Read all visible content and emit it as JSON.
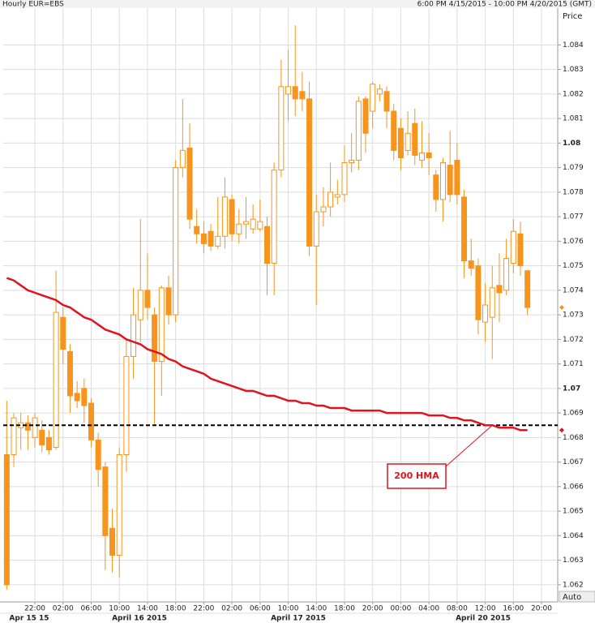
{
  "chart_data": {
    "type": "candlestick",
    "title": "Hourly EUR=EBS",
    "subtitle": "6:00 PM 4/15/2015 - 10:00 PM 4/20/2015 (GMT)",
    "y_axis_label": "Price",
    "axis_mode": "Auto",
    "categories": [
      null,
      null,
      null,
      null,
      "22:00",
      null,
      null,
      null,
      "02:00",
      null,
      null,
      null,
      "06:00",
      null,
      null,
      null,
      "10:00",
      null,
      null,
      null,
      "14:00",
      null,
      null,
      null,
      "18:00",
      null,
      null,
      null,
      "22:00",
      null,
      null,
      null,
      "02:00",
      null,
      null,
      null,
      "06:00",
      null,
      null,
      null,
      "10:00",
      null,
      null,
      null,
      "14:00",
      null,
      null,
      null,
      "18:00",
      null,
      null,
      null,
      "20:00",
      null,
      null,
      null,
      "00:00",
      null,
      null,
      null,
      "04:00",
      null,
      null,
      null,
      "08:00",
      null,
      null,
      null,
      "12:00",
      null,
      null,
      null,
      "16:00",
      null,
      null,
      null,
      "20:00"
    ],
    "date_labels": [
      "Apr 15 15",
      "April 16 2015",
      "April 17 2015",
      "April 20 2015"
    ],
    "open": [
      1.0673,
      1.0673,
      1.0684,
      1.0686,
      1.068,
      1.0683,
      1.068,
      1.0676,
      1.0729,
      1.0715,
      1.0698,
      1.07,
      1.0694,
      1.0679,
      1.0668,
      1.0643,
      1.0632,
      1.0673,
      1.0713,
      1.0728,
      1.074,
      1.073,
      1.0711,
      1.0741,
      1.073,
      1.079,
      1.0798,
      1.0766,
      1.0763,
      1.0764,
      1.0758,
      1.0762,
      1.0777,
      1.0763,
      1.0767,
      1.0765,
      1.0765,
      1.0766,
      1.0751,
      1.0789,
      1.082,
      1.0823,
      1.0821,
      1.0818,
      1.0758,
      1.0772,
      1.0774,
      1.0778,
      1.0779,
      1.0792,
      1.0793,
      1.0818,
      1.0813,
      1.082,
      1.0821,
      1.0813,
      1.0806,
      1.0797,
      1.0808,
      1.0793,
      1.0796,
      1.0787,
      1.0777,
      1.0791,
      1.0793,
      1.0778,
      1.0752,
      1.075,
      1.0727,
      1.0729,
      1.0742,
      1.074,
      1.0751,
      1.0763,
      1.0748,
      null,
      null
    ],
    "high": [
      1.0695,
      1.069,
      1.069,
      1.0689,
      1.069,
      1.0687,
      1.0683,
      1.0748,
      1.0733,
      1.0718,
      1.0703,
      1.0704,
      1.0696,
      1.0682,
      1.067,
      1.0651,
      1.0676,
      1.072,
      1.0741,
      1.0769,
      1.0755,
      1.0733,
      1.0742,
      1.0746,
      1.0793,
      1.0818,
      1.0808,
      1.0773,
      1.0768,
      1.0767,
      1.0778,
      1.0786,
      1.0779,
      1.0773,
      1.0778,
      1.0775,
      1.0777,
      1.077,
      1.0792,
      1.0834,
      1.0838,
      1.0848,
      1.0829,
      1.0825,
      1.0779,
      1.0782,
      1.0792,
      1.0785,
      1.0799,
      1.0804,
      1.0819,
      1.0819,
      1.0825,
      1.0824,
      1.0823,
      1.0816,
      1.081,
      1.0813,
      1.0814,
      1.0809,
      1.0804,
      1.0789,
      1.0794,
      1.0805,
      1.08,
      1.0781,
      1.0761,
      1.0753,
      1.0743,
      1.075,
      1.0755,
      1.0761,
      1.0769,
      1.0768,
      1.0748,
      null,
      null
    ],
    "low": [
      1.0618,
      1.0668,
      1.0675,
      1.0675,
      1.0676,
      1.0674,
      1.0673,
      1.0675,
      1.071,
      1.069,
      1.0692,
      1.0686,
      1.0676,
      1.066,
      1.0626,
      1.0625,
      1.0623,
      1.0666,
      1.0704,
      1.0719,
      1.0728,
      1.0685,
      1.0697,
      1.0726,
      1.0727,
      1.0786,
      1.0765,
      1.0759,
      1.0755,
      1.0756,
      1.0757,
      1.0757,
      1.076,
      1.0759,
      1.0761,
      1.0763,
      1.0764,
      1.0738,
      1.0738,
      1.0786,
      1.0809,
      1.0811,
      1.0813,
      1.0754,
      1.0734,
      1.0766,
      1.077,
      1.0775,
      1.0776,
      1.0788,
      1.0789,
      1.0796,
      1.0806,
      1.0817,
      1.0806,
      1.0793,
      1.0789,
      1.0795,
      1.0791,
      1.079,
      1.0787,
      1.0772,
      1.0768,
      1.0776,
      1.0775,
      1.0745,
      1.0746,
      1.0722,
      1.0719,
      1.0712,
      1.0727,
      1.0738,
      1.0747,
      1.0746,
      1.073,
      null,
      null
    ],
    "close": [
      1.062,
      1.0688,
      1.0686,
      1.0683,
      1.0688,
      1.0677,
      1.0675,
      1.0731,
      1.0716,
      1.0697,
      1.0695,
      1.0693,
      1.0679,
      1.0667,
      1.064,
      1.0632,
      1.0673,
      1.0713,
      1.073,
      1.074,
      1.0733,
      1.0711,
      1.0741,
      1.073,
      1.079,
      1.0797,
      1.0769,
      1.0763,
      1.0759,
      1.0758,
      1.0762,
      1.0778,
      1.0763,
      1.0767,
      1.0768,
      1.0769,
      1.0768,
      1.0751,
      1.0789,
      1.0823,
      1.0823,
      1.0818,
      1.0818,
      1.0758,
      1.0772,
      1.0774,
      1.078,
      1.0779,
      1.0792,
      1.0793,
      1.0817,
      1.0804,
      1.0824,
      1.0822,
      1.0813,
      1.0797,
      1.0794,
      1.0804,
      1.0795,
      1.0796,
      1.0794,
      1.0777,
      1.0792,
      1.0779,
      1.0779,
      1.0752,
      1.0749,
      1.0728,
      1.0734,
      1.0741,
      1.0739,
      1.0753,
      1.0764,
      1.075,
      1.0733,
      null,
      null
    ],
    "up_color": "#f7941d",
    "down_color": "#f7941d",
    "series": [
      {
        "name": "200 HMA",
        "color": "#e0141e",
        "values": [
          1.0745,
          1.0744,
          1.0742,
          1.074,
          1.0739,
          1.0738,
          1.0737,
          1.0736,
          1.0734,
          1.0733,
          1.0731,
          1.0729,
          1.0728,
          1.0726,
          1.0724,
          1.0723,
          1.0722,
          1.072,
          1.0719,
          1.0718,
          1.0716,
          1.0715,
          1.0714,
          1.0712,
          1.0711,
          1.0709,
          1.0708,
          1.0707,
          1.0706,
          1.0704,
          1.0703,
          1.0702,
          1.0701,
          1.07,
          1.0699,
          1.0699,
          1.0698,
          1.0697,
          1.0697,
          1.0696,
          1.0695,
          1.0695,
          1.0694,
          1.0694,
          1.0693,
          1.0693,
          1.0692,
          1.0692,
          1.0692,
          1.0691,
          1.0691,
          1.0691,
          1.0691,
          1.0691,
          1.069,
          1.069,
          1.069,
          1.069,
          1.069,
          1.069,
          1.0689,
          1.0689,
          1.0689,
          1.0688,
          1.0688,
          1.0687,
          1.0687,
          1.0686,
          1.0685,
          1.0685,
          1.0684,
          1.0684,
          1.0684,
          1.0683,
          1.0683,
          null,
          null
        ]
      }
    ],
    "reference_line": 1.0685,
    "ylim": [
      1.0613,
      1.0855
    ],
    "yticks": [
      1.062,
      1.063,
      1.064,
      1.065,
      1.066,
      1.067,
      1.068,
      1.069,
      1.07,
      1.071,
      1.072,
      1.073,
      1.074,
      1.075,
      1.076,
      1.077,
      1.078,
      1.079,
      1.08,
      1.081,
      1.082,
      1.083,
      1.084
    ],
    "grid": true
  }
}
